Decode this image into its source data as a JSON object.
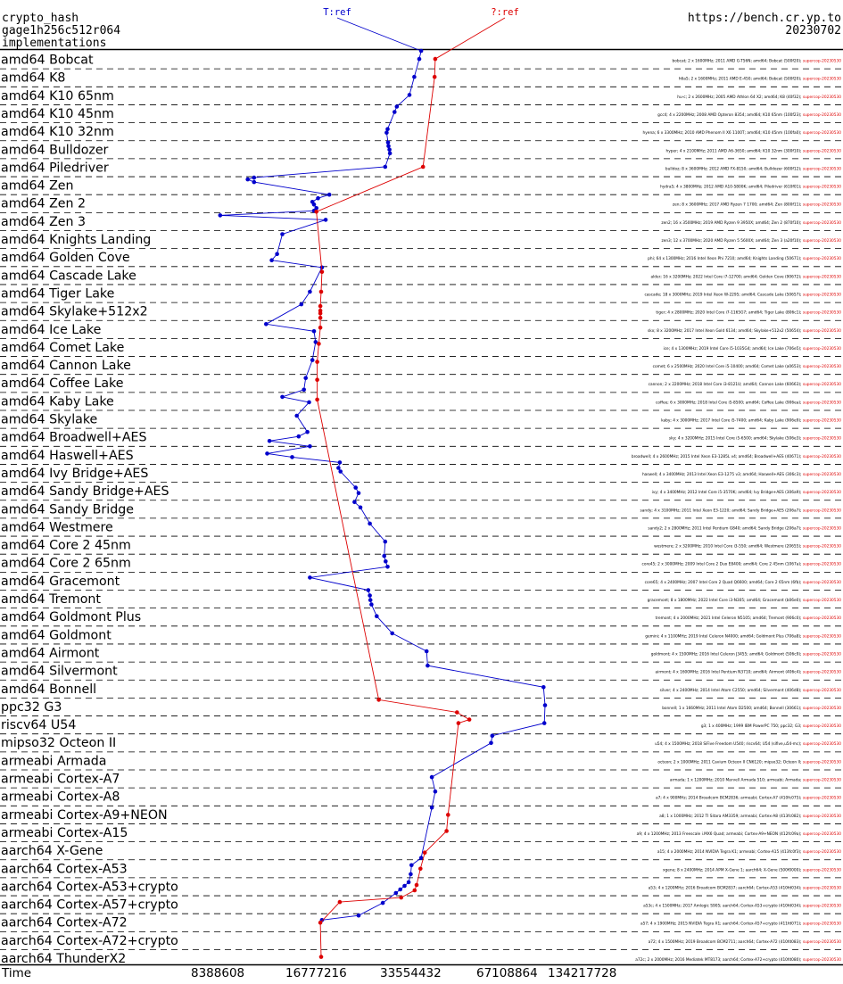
{
  "header": {
    "primitive": "crypto_hash",
    "implementation": "gage1h256c512r064",
    "caption": "implementations",
    "site": "https://bench.cr.yp.to",
    "date": "20230702"
  },
  "colors": {
    "series_T": "#0000cc",
    "series_Q": "#dd0000",
    "grid": "#000000",
    "detail_date": "#dd0000"
  },
  "chart_data": {
    "type": "line",
    "xlabel": "Time",
    "x_scale": "log2",
    "x_ticks": [
      8388608,
      16777216,
      33554432,
      67108864,
      134217728
    ],
    "x_tick_labels": [
      "8388608",
      "16777216",
      "33554432",
      "67108864",
      "134217728"
    ],
    "groups": [
      "amd64 Bobcat",
      "amd64 K8",
      "amd64 K10 65nm",
      "amd64 K10 45nm",
      "amd64 K10 32nm",
      "amd64 Bulldozer",
      "amd64 Piledriver",
      "amd64 Zen",
      "amd64 Zen 2",
      "amd64 Zen 3",
      "amd64 Knights Landing",
      "amd64 Golden Cove",
      "amd64 Cascade Lake",
      "amd64 Tiger Lake",
      "amd64 Skylake+512x2",
      "amd64 Ice Lake",
      "amd64 Comet Lake",
      "amd64 Cannon Lake",
      "amd64 Coffee Lake",
      "amd64 Kaby Lake",
      "amd64 Skylake",
      "amd64 Broadwell+AES",
      "amd64 Haswell+AES",
      "amd64 Ivy Bridge+AES",
      "amd64 Sandy Bridge+AES",
      "amd64 Sandy Bridge",
      "amd64 Westmere",
      "amd64 Core 2 45nm",
      "amd64 Core 2 65nm",
      "amd64 Gracemont",
      "amd64 Tremont",
      "amd64 Goldmont Plus",
      "amd64 Goldmont",
      "amd64 Airmont",
      "amd64 Silvermont",
      "amd64 Bonnell",
      "ppc32 G3",
      "riscv64 U54",
      "mipso32 Octeon II",
      "armeabi Armada",
      "armeabi Cortex-A7",
      "armeabi Cortex-A8",
      "armeabi Cortex-A9+NEON",
      "armeabi Cortex-A15",
      "aarch64 X-Gene",
      "aarch64 Cortex-A53",
      "aarch64 Cortex-A53+crypto",
      "aarch64 Cortex-A57+crypto",
      "aarch64 Cortex-A72",
      "aarch64 Cortex-A72+crypto",
      "aarch64 ThunderX2"
    ],
    "series": [
      {
        "name": "T:ref",
        "points": [
          {
            "g": 0,
            "f": 0.0,
            "x": 37000000
          },
          {
            "g": 0,
            "f": 0.45,
            "x": 36500000
          },
          {
            "g": 1,
            "f": 0.45,
            "x": 35200000
          },
          {
            "g": 2,
            "f": 0.45,
            "x": 34000000
          },
          {
            "g": 3,
            "f": 0.1,
            "x": 31000000
          },
          {
            "g": 3,
            "f": 0.4,
            "x": 30500000
          },
          {
            "g": 4,
            "f": 0.35,
            "x": 29000000
          },
          {
            "g": 4,
            "f": 0.55,
            "x": 28800000
          },
          {
            "g": 5,
            "f": 0.1,
            "x": 29100000
          },
          {
            "g": 5,
            "f": 0.3,
            "x": 29200000
          },
          {
            "g": 5,
            "f": 0.5,
            "x": 29400000
          },
          {
            "g": 5,
            "f": 0.7,
            "x": 29500000
          },
          {
            "g": 6,
            "f": 0.45,
            "x": 28500000
          },
          {
            "g": 7,
            "f": 0.05,
            "x": 11000000
          },
          {
            "g": 7,
            "f": 0.15,
            "x": 10500000
          },
          {
            "g": 7,
            "f": 0.3,
            "x": 11000000
          },
          {
            "g": 8,
            "f": 0.0,
            "x": 19000000
          },
          {
            "g": 8,
            "f": 0.2,
            "x": 17500000
          },
          {
            "g": 8,
            "f": 0.4,
            "x": 16800000
          },
          {
            "g": 8,
            "f": 0.55,
            "x": 17000000
          },
          {
            "g": 8,
            "f": 0.75,
            "x": 17300000
          },
          {
            "g": 8,
            "f": 0.9,
            "x": 17000000
          },
          {
            "g": 9,
            "f": 0.15,
            "x": 8600000
          },
          {
            "g": 9,
            "f": 0.4,
            "x": 18500000
          },
          {
            "g": 10,
            "f": 0.2,
            "x": 13500000
          },
          {
            "g": 11,
            "f": 0.3,
            "x": 13000000
          },
          {
            "g": 11,
            "f": 0.65,
            "x": 12500000
          },
          {
            "g": 12,
            "f": 0.05,
            "x": 18000000
          },
          {
            "g": 13,
            "f": 0.4,
            "x": 16500000
          },
          {
            "g": 14,
            "f": 0.1,
            "x": 15500000
          },
          {
            "g": 15,
            "f": 0.2,
            "x": 12000000
          },
          {
            "g": 15,
            "f": 0.6,
            "x": 17000000
          },
          {
            "g": 16,
            "f": 0.2,
            "x": 17200000
          },
          {
            "g": 17,
            "f": 0.2,
            "x": 16800000
          },
          {
            "g": 18,
            "f": 0.2,
            "x": 16000000
          },
          {
            "g": 18,
            "f": 0.85,
            "x": 15800000
          },
          {
            "g": 19,
            "f": 0.25,
            "x": 13500000
          },
          {
            "g": 19,
            "f": 0.55,
            "x": 16400000
          },
          {
            "g": 20,
            "f": 0.3,
            "x": 15000000
          },
          {
            "g": 21,
            "f": 0.2,
            "x": 16200000
          },
          {
            "g": 21,
            "f": 0.45,
            "x": 15200000
          },
          {
            "g": 21,
            "f": 0.7,
            "x": 12300000
          },
          {
            "g": 22,
            "f": 0.0,
            "x": 16500000
          },
          {
            "g": 22,
            "f": 0.4,
            "x": 12100000
          },
          {
            "g": 22,
            "f": 0.6,
            "x": 14500000
          },
          {
            "g": 22,
            "f": 0.9,
            "x": 20500000
          },
          {
            "g": 23,
            "f": 0.2,
            "x": 20300000
          },
          {
            "g": 23,
            "f": 0.4,
            "x": 20600000
          },
          {
            "g": 24,
            "f": 0.3,
            "x": 23000000
          },
          {
            "g": 24,
            "f": 0.6,
            "x": 23500000
          },
          {
            "g": 25,
            "f": 0.1,
            "x": 22800000
          },
          {
            "g": 25,
            "f": 0.4,
            "x": 23800000
          },
          {
            "g": 26,
            "f": 0.3,
            "x": 25500000
          },
          {
            "g": 27,
            "f": 0.3,
            "x": 28500000
          },
          {
            "g": 28,
            "f": 0.1,
            "x": 28300000
          },
          {
            "g": 28,
            "f": 0.4,
            "x": 28600000
          },
          {
            "g": 28,
            "f": 0.7,
            "x": 29000000
          },
          {
            "g": 29,
            "f": 0.3,
            "x": 16500000
          },
          {
            "g": 30,
            "f": 0.0,
            "x": 25200000
          },
          {
            "g": 30,
            "f": 0.3,
            "x": 25500000
          },
          {
            "g": 30,
            "f": 0.55,
            "x": 25600000
          },
          {
            "g": 30,
            "f": 0.8,
            "x": 25800000
          },
          {
            "g": 31,
            "f": 0.45,
            "x": 26800000
          },
          {
            "g": 32,
            "f": 0.4,
            "x": 30000000
          },
          {
            "g": 33,
            "f": 0.4,
            "x": 38500000
          },
          {
            "g": 34,
            "f": 0.2,
            "x": 38800000
          },
          {
            "g": 35,
            "f": 0.4,
            "x": 90000000
          },
          {
            "g": 36,
            "f": 0.4,
            "x": 91000000
          },
          {
            "g": 37,
            "f": 0.4,
            "x": 90500000
          },
          {
            "g": 38,
            "f": 0.1,
            "x": 62000000
          },
          {
            "g": 38,
            "f": 0.5,
            "x": 61500000
          },
          {
            "g": 40,
            "f": 0.4,
            "x": 40000000
          },
          {
            "g": 41,
            "f": 0.2,
            "x": 41000000
          },
          {
            "g": 42,
            "f": 0.1,
            "x": 40000000
          },
          {
            "g": 44,
            "f": 0.9,
            "x": 37000000
          },
          {
            "g": 45,
            "f": 0.3,
            "x": 34500000
          },
          {
            "g": 45,
            "f": 0.8,
            "x": 34300000
          },
          {
            "g": 46,
            "f": 0.25,
            "x": 33800000
          },
          {
            "g": 46,
            "f": 0.45,
            "x": 32800000
          },
          {
            "g": 46,
            "f": 0.65,
            "x": 31800000
          },
          {
            "g": 46,
            "f": 0.85,
            "x": 30800000
          },
          {
            "g": 47,
            "f": 0.4,
            "x": 28000000
          },
          {
            "g": 48,
            "f": 0.1,
            "x": 23500000
          },
          {
            "g": 48,
            "f": 0.35,
            "x": 18000000
          }
        ]
      },
      {
        "name": "?:ref",
        "points": [
          {
            "g": 0,
            "f": 0.45,
            "x": 41000000
          },
          {
            "g": 1,
            "f": 0.45,
            "x": 40800000
          },
          {
            "g": 6,
            "f": 0.45,
            "x": 37500000
          },
          {
            "g": 8,
            "f": 0.95,
            "x": 17300000
          },
          {
            "g": 12,
            "f": 0.3,
            "x": 18000000
          },
          {
            "g": 13,
            "f": 0.4,
            "x": 17900000
          },
          {
            "g": 14,
            "f": 0.2,
            "x": 17800000
          },
          {
            "g": 14,
            "f": 0.45,
            "x": 17800000
          },
          {
            "g": 14,
            "f": 0.6,
            "x": 17800000
          },
          {
            "g": 14,
            "f": 0.85,
            "x": 17800000
          },
          {
            "g": 15,
            "f": 0.4,
            "x": 17800000
          },
          {
            "g": 16,
            "f": 0.3,
            "x": 17600000
          },
          {
            "g": 17,
            "f": 0.3,
            "x": 17400000
          },
          {
            "g": 18,
            "f": 0.3,
            "x": 17400000
          },
          {
            "g": 19,
            "f": 0.4,
            "x": 17400000
          },
          {
            "g": 36,
            "f": 0.1,
            "x": 27200000
          },
          {
            "g": 36,
            "f": 0.8,
            "x": 48000000
          },
          {
            "g": 37,
            "f": 0.2,
            "x": 52500000
          },
          {
            "g": 37,
            "f": 0.4,
            "x": 48500000
          },
          {
            "g": 42,
            "f": 0.5,
            "x": 45000000
          },
          {
            "g": 43,
            "f": 0.4,
            "x": 44500000
          },
          {
            "g": 44,
            "f": 0.6,
            "x": 38000000
          },
          {
            "g": 45,
            "f": 0.5,
            "x": 36800000
          },
          {
            "g": 46,
            "f": 0.4,
            "x": 35800000
          },
          {
            "g": 46,
            "f": 0.7,
            "x": 35300000
          },
          {
            "g": 47,
            "f": 0.1,
            "x": 32000000
          },
          {
            "g": 47,
            "f": 0.35,
            "x": 20500000
          },
          {
            "g": 48,
            "f": 0.5,
            "x": 17800000
          },
          {
            "g": 50,
            "f": 0.4,
            "x": 17900000
          }
        ]
      }
    ],
    "details": [
      [
        "bobcat; 2 x 1600MHz; 2011 AMD G-T56N; amd64; Bobcat (500f20)",
        "supercop-20230530"
      ],
      [
        "h6a5; 2 x 1600MHz; 2011 AMD E-450; amd64; Bobcat (500f20)",
        "supercop-20230530"
      ],
      [
        "hu-c; 2 x 2600MHz; 2005 AMD Athlon 64 X2; amd64; K8 (40f32)",
        "supercop-20230530"
      ],
      [
        "gcc4; 4 x 2200MHz; 2008 AMD Opteron 8354; amd64; K10 65nm (100f23)",
        "supercop-20230530"
      ],
      [
        "hyena; 6 x 3300MHz; 2010 AMD Phenom II X6 1100T; amd64; K10 45nm (100fa0)",
        "supercop-20230530"
      ],
      [
        "hyper; 4 x 2100MHz; 2011 AMD A6-3650; amd64; K10 32nm (300f10)",
        "supercop-20230530"
      ],
      [
        "bulldoz; 8 x 3600MHz; 2012 AMD FX-8150; amd64; Bulldozer (600f12)",
        "supercop-20230530"
      ],
      [
        "hydra5; 4 x 3800MHz; 2012 AMD A10-5800K; amd64; Piledriver (610f01)",
        "supercop-20230530"
      ],
      [
        "zen; 8 x 3600MHz; 2017 AMD Ryzen 7 1700; amd64; Zen (800f11)",
        "supercop-20230530"
      ],
      [
        "zen2; 16 x 3500MHz; 2019 AMD Ryzen 9 3950X; amd64; Zen 2 (870f10)",
        "supercop-20230530"
      ],
      [
        "zen3; 12 x 3700MHz; 2020 AMD Ryzen 5 5600X; amd64; Zen 3 (a20f10)",
        "supercop-20230530"
      ],
      [
        "phi; 64 x 1300MHz; 2016 Intel Xeon Phi 7210; amd64; Knights Landing (50671)",
        "supercop-20230530"
      ],
      [
        "alder; 16 x 3200MHz; 2022 Intel Core i7-12700; amd64; Golden Cove (90672)",
        "supercop-20230530"
      ],
      [
        "cascade; 18 x 3000MHz; 2019 Intel Xeon W-2295; amd64; Cascade Lake (50657)",
        "supercop-20230530"
      ],
      [
        "tiger; 4 x 2800MHz; 2020 Intel Core i7-1165G7; amd64; Tiger Lake (806c1)",
        "supercop-20230530"
      ],
      [
        "skx; 8 x 3200MHz; 2017 Intel Xeon Gold 6134; amd64; Skylake+512x2 (50654)",
        "supercop-20230530"
      ],
      [
        "ice; 4 x 1300MHz; 2019 Intel Core i5-1035G4; amd64; Ice Lake (706e5)",
        "supercop-20230530"
      ],
      [
        "comet; 6 x 2500MHz; 2020 Intel Core i5-10400; amd64; Comet Lake (a0653)",
        "supercop-20230530"
      ],
      [
        "cannon; 2 x 2200MHz; 2018 Intel Core i3-8121U; amd64; Cannon Lake (60663)",
        "supercop-20230530"
      ],
      [
        "coffee; 6 x 3000MHz; 2018 Intel Core i5-8500; amd64; Coffee Lake (906ea)",
        "supercop-20230530"
      ],
      [
        "kaby; 4 x 3000MHz; 2017 Intel Core i5-7400; amd64; Kaby Lake (906e9)",
        "supercop-20230530"
      ],
      [
        "sky; 4 x 3200MHz; 2015 Intel Core i5-6500; amd64; Skylake (506e3)",
        "supercop-20230530"
      ],
      [
        "broadwell; 4 x 2600MHz; 2015 Intel Xeon E3-1285L v4; amd64; Broadwell+AES (40671)",
        "supercop-20230530"
      ],
      [
        "haswell; 4 x 3400MHz; 2013 Intel Xeon E3-1275 v3; amd64; Haswell+AES (306c3)",
        "supercop-20230530"
      ],
      [
        "ivy; 4 x 3400MHz; 2012 Intel Core i5-3570K; amd64; Ivy Bridge+AES (306a9)",
        "supercop-20230530"
      ],
      [
        "sandy; 4 x 3100MHz; 2011 Intel Xeon E3-1220; amd64; Sandy Bridge+AES (206a7)",
        "supercop-20230530"
      ],
      [
        "sandy2; 2 x 2800MHz; 2011 Intel Pentium G840; amd64; Sandy Bridge (206a7)",
        "supercop-20230530"
      ],
      [
        "westmere; 2 x 3200MHz; 2010 Intel Core i3-550; amd64; Westmere (20655)",
        "supercop-20230530"
      ],
      [
        "core45; 2 x 3000MHz; 2009 Intel Core 2 Duo E8400; amd64; Core 2 45nm (1067a)",
        "supercop-20230530"
      ],
      [
        "core65; 4 x 2400MHz; 2007 Intel Core 2 Quad Q6600; amd64; Core 2 65nm (6fb)",
        "supercop-20230530"
      ],
      [
        "gracemont; 8 x 1800MHz; 2022 Intel Core i3-N305; amd64; Gracemont (b06e0)",
        "supercop-20230530"
      ],
      [
        "tremont; 4 x 2000MHz; 2021 Intel Celeron N5105; amd64; Tremont (906c0)",
        "supercop-20230530"
      ],
      [
        "gemini; 4 x 1100MHz; 2019 Intel Celeron N4000; amd64; Goldmont Plus (706a8)",
        "supercop-20230530"
      ],
      [
        "goldmont; 4 x 1500MHz; 2016 Intel Celeron J3455; amd64; Goldmont (506c9)",
        "supercop-20230530"
      ],
      [
        "airmont; 4 x 1600MHz; 2016 Intel Pentium N3710; amd64; Airmont (406c4)",
        "supercop-20230530"
      ],
      [
        "silver; 4 x 2400MHz; 2014 Intel Atom C2550; amd64; Silvermont (406d8)",
        "supercop-20230530"
      ],
      [
        "bonnell; 1 x 1660MHz; 2011 Intel Atom D2500; amd64; Bonnell (30661)",
        "supercop-20230530"
      ],
      [
        "g3; 1 x 400MHz; 1999 IBM PowerPC 750; ppc32; G3",
        "supercop-20230530"
      ],
      [
        "u54; 4 x 1500MHz; 2018 SiFive Freedom U540; riscv64; U54 (sifive,u54-mc)",
        "supercop-20230530"
      ],
      [
        "octeon; 2 x 1000MHz; 2011 Cavium Octeon II CN6120; mipso32; Octeon II",
        "supercop-20230530"
      ],
      [
        "armada; 1 x 1200MHz; 2010 Marvell Armada 510; armeabi; Armada",
        "supercop-20230530"
      ],
      [
        "a7; 4 x 900MHz; 2014 Broadcom BCM2836; armeabi; Cortex-A7 (410fc075)",
        "supercop-20230530"
      ],
      [
        "a8; 1 x 1000MHz; 2012 TI Sitara AM3359; armeabi; Cortex-A8 (413fc082)",
        "supercop-20230530"
      ],
      [
        "a9; 4 x 1200MHz; 2013 Freescale i.MX6 Quad; armeabi; Cortex-A9+NEON (412fc09a)",
        "supercop-20230530"
      ],
      [
        "a15; 4 x 2000MHz; 2014 NVIDIA Tegra K1; armeabi; Cortex-A15 (413fc0f3)",
        "supercop-20230530"
      ],
      [
        "xgene; 8 x 2400MHz; 2014 APM X-Gene 1; aarch64; X-Gene (500f0000)",
        "supercop-20230530"
      ],
      [
        "a53; 4 x 1200MHz; 2016 Broadcom BCM2837; aarch64; Cortex-A53 (410fd034)",
        "supercop-20230530"
      ],
      [
        "a53c; 4 x 1500MHz; 2017 Amlogic S905; aarch64; Cortex-A53+crypto (410fd034)",
        "supercop-20230530"
      ],
      [
        "a57; 4 x 1900MHz; 2015 NVIDIA Tegra X1; aarch64; Cortex-A57+crypto (411fd071)",
        "supercop-20230530"
      ],
      [
        "a72; 4 x 1500MHz; 2019 Broadcom BCM2711; aarch64; Cortex-A72 (410fd083)",
        "supercop-20230530"
      ],
      [
        "a72c; 2 x 2000MHz; 2016 Mediatek MT8173; aarch64; Cortex-A72+crypto (410fd080)",
        "supercop-20230530"
      ],
      [
        "thunder; 64 x 2500MHz; 2018 Cavium ThunderX2 CN9980; aarch64; ThunderX2 (431f0af1)",
        "supercop-20230530"
      ]
    ]
  }
}
